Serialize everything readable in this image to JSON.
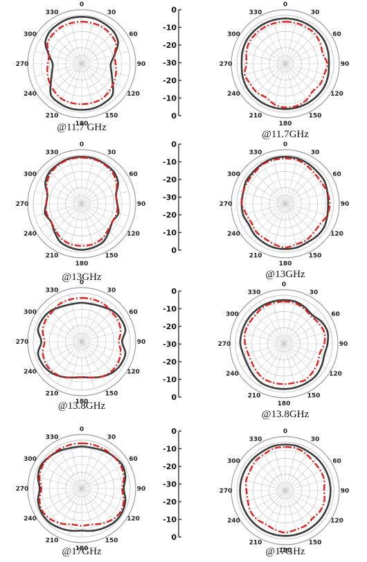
{
  "colors": {
    "solid": "#3a3a3a",
    "dashed": "#e0201c",
    "grid": "#c8c8c8",
    "frame": "#9a9a9a"
  },
  "angle_labels": [
    "0",
    "30",
    "60",
    "90",
    "120",
    "150",
    "180",
    "210",
    "240",
    "270",
    "300",
    "330"
  ],
  "scale_labels": [
    "0",
    "-10",
    "-20",
    "-30",
    "-20",
    "-10",
    "0"
  ],
  "captions": [
    [
      "@11.7 GHz",
      "@11.7GHz"
    ],
    [
      "@13GHz",
      "@13GHz"
    ],
    [
      "@13.8GHz",
      "@13.8GHz"
    ],
    [
      "@17GHz",
      "@17GHz"
    ]
  ],
  "chart_data": [
    {
      "type": "polar",
      "caption": "@11.7 GHz",
      "r_axis": {
        "ticks": [
          0,
          -10,
          -20,
          -30
        ],
        "range": [
          -30,
          0
        ]
      },
      "theta_step_deg": 15,
      "series": [
        {
          "style": "solid",
          "values_db": [
            -1,
            -1,
            -1.5,
            -2,
            -4,
            -9,
            -12,
            -11,
            -8,
            -3,
            -2,
            -1.5,
            -1.5,
            -1.5,
            -2,
            -3,
            -8,
            -11,
            -12,
            -9,
            -4,
            -2,
            -1.5,
            -1
          ]
        },
        {
          "style": "dashed",
          "values_db": [
            -4,
            -4,
            -4,
            -4.5,
            -5.5,
            -9,
            -9,
            -8,
            -7,
            -6,
            -5,
            -5,
            -5,
            -5,
            -5,
            -6,
            -7,
            -8,
            -9,
            -9,
            -5.5,
            -4.5,
            -4,
            -4
          ]
        }
      ]
    },
    {
      "type": "polar",
      "caption": "@11.7GHz",
      "r_axis": {
        "ticks": [
          0,
          -10,
          -20,
          -30
        ],
        "range": [
          -30,
          0
        ]
      },
      "theta_step_deg": 15,
      "series": [
        {
          "style": "solid",
          "values_db": [
            -2,
            -2,
            -2,
            -2,
            -2,
            -2.5,
            -3,
            -2.5,
            -2,
            -2,
            -2,
            -2,
            -2,
            -2,
            -2,
            -2,
            -2,
            -2.5,
            -3,
            -2.5,
            -2,
            -2,
            -2,
            -2
          ]
        },
        {
          "style": "dashed",
          "values_db": [
            -4,
            -4,
            -4,
            -4,
            -5,
            -6,
            -4,
            -5,
            -5,
            -6,
            -4,
            -3,
            -3,
            -4,
            -6,
            -5,
            -5,
            -4,
            -6,
            -5,
            -4,
            -4,
            -4,
            -4
          ]
        }
      ]
    },
    {
      "type": "polar",
      "caption": "@13GHz",
      "r_axis": {
        "ticks": [
          0,
          -10,
          -20,
          -30
        ],
        "range": [
          -30,
          0
        ]
      },
      "theta_step_deg": 15,
      "series": [
        {
          "style": "solid",
          "values_db": [
            -1,
            -1,
            -1.5,
            -2,
            -4,
            -8,
            -8,
            -6.5,
            -8,
            -6,
            -3,
            -2,
            -1.5,
            -2,
            -3,
            -6,
            -8,
            -6.5,
            -8,
            -8,
            -4,
            -2,
            -1.5,
            -1
          ]
        },
        {
          "style": "dashed",
          "values_db": [
            -1.5,
            -1.5,
            -2,
            -3,
            -5,
            -8,
            -8,
            -7.5,
            -8,
            -7,
            -5,
            -4,
            -4,
            -4,
            -5,
            -7,
            -8,
            -7.5,
            -8,
            -8,
            -5,
            -3,
            -2,
            -1.5
          ]
        }
      ]
    },
    {
      "type": "polar",
      "caption": "@13GHz",
      "r_axis": {
        "ticks": [
          0,
          -10,
          -20,
          -30
        ],
        "range": [
          -30,
          0
        ]
      },
      "theta_step_deg": 15,
      "series": [
        {
          "style": "solid",
          "values_db": [
            -1,
            -1,
            -1.5,
            -2,
            -2,
            -3,
            -3.5,
            -3,
            -2,
            -2,
            -2.5,
            -2,
            -2,
            -2,
            -2.5,
            -3,
            -4,
            -3,
            -3,
            -3,
            -2,
            -2,
            -1.5,
            -1
          ]
        },
        {
          "style": "dashed",
          "values_db": [
            -2,
            -2,
            -3,
            -4,
            -4,
            -3,
            -2.5,
            -3,
            -5,
            -5,
            -4,
            -4,
            -3,
            -4,
            -5,
            -5,
            -6,
            -5,
            -3,
            -3,
            -3,
            -3,
            -2,
            -2
          ]
        }
      ]
    },
    {
      "type": "polar",
      "caption": "@13.8GHz",
      "r_axis": {
        "ticks": [
          0,
          -10,
          -20,
          -30
        ],
        "range": [
          -30,
          0
        ]
      },
      "theta_step_deg": 15,
      "series": [
        {
          "style": "solid",
          "values_db": [
            -6,
            -6,
            -5,
            -3,
            -2,
            -2,
            -5,
            -2,
            -2,
            -3,
            -5,
            -7,
            -8,
            -7,
            -5,
            -3,
            -2,
            -2,
            -5,
            -2,
            -2,
            -3,
            -5,
            -6
          ]
        },
        {
          "style": "dashed",
          "values_db": [
            -3,
            -3,
            -3,
            -4,
            -4,
            -5,
            -7,
            -5,
            -4,
            -4,
            -5,
            -7,
            -8,
            -7,
            -5,
            -4,
            -4,
            -5,
            -7,
            -5,
            -4,
            -4,
            -3,
            -3
          ]
        }
      ]
    },
    {
      "type": "polar",
      "caption": "@13.8GHz",
      "r_axis": {
        "ticks": [
          0,
          -10,
          -20,
          -30
        ],
        "range": [
          -30,
          0
        ]
      },
      "theta_step_deg": 15,
      "series": [
        {
          "style": "solid",
          "values_db": [
            -3,
            -3,
            -4,
            -5,
            -3,
            -2,
            -3,
            -4,
            -3,
            -2,
            -2,
            -2,
            -2,
            -2,
            -2,
            -3,
            -4,
            -4,
            -3,
            -3,
            -3,
            -3,
            -3,
            -3
          ]
        },
        {
          "style": "dashed",
          "values_db": [
            -4,
            -4,
            -5,
            -6,
            -5,
            -4,
            -5,
            -7,
            -6,
            -5,
            -4,
            -5,
            -5,
            -5,
            -5,
            -6,
            -7,
            -7,
            -6,
            -5,
            -5,
            -5,
            -4,
            -4
          ]
        }
      ]
    },
    {
      "type": "polar",
      "caption": "@17GHz",
      "r_axis": {
        "ticks": [
          0,
          -10,
          -20,
          -30
        ],
        "range": [
          -30,
          0
        ]
      },
      "theta_step_deg": 15,
      "series": [
        {
          "style": "solid",
          "values_db": [
            -4,
            -4,
            -3,
            -2,
            -1,
            -2,
            -4,
            -2,
            -1,
            -1,
            -2,
            -3,
            -4,
            -3,
            -2,
            -1,
            -1,
            -2,
            -4,
            -2,
            -1,
            -2,
            -3,
            -4
          ]
        },
        {
          "style": "dashed",
          "values_db": [
            -2,
            -2,
            -2,
            -2,
            -2,
            -3,
            -5,
            -3,
            -2,
            -3,
            -5,
            -7,
            -7,
            -7,
            -5,
            -3,
            -2,
            -3,
            -5,
            -3,
            -2,
            -2,
            -2,
            -2
          ]
        }
      ]
    },
    {
      "type": "polar",
      "caption": "@17GHz",
      "r_axis": {
        "ticks": [
          0,
          -10,
          -20,
          -30
        ],
        "range": [
          -30,
          0
        ]
      },
      "theta_step_deg": 15,
      "series": [
        {
          "style": "solid",
          "values_db": [
            -1.5,
            -1.5,
            -2,
            -2,
            -2,
            -2,
            -2,
            -2,
            -2,
            -2,
            -2,
            -2,
            -2,
            -2,
            -2,
            -2,
            -2,
            -2,
            -2,
            -2,
            -2,
            -2,
            -2,
            -1.5
          ]
        },
        {
          "style": "dashed",
          "values_db": [
            -3,
            -3,
            -4,
            -5,
            -5,
            -5,
            -6,
            -5,
            -5,
            -6,
            -5,
            -5,
            -4,
            -5,
            -6,
            -5,
            -5,
            -6,
            -6,
            -5,
            -5,
            -4,
            -4,
            -3
          ]
        }
      ]
    }
  ]
}
